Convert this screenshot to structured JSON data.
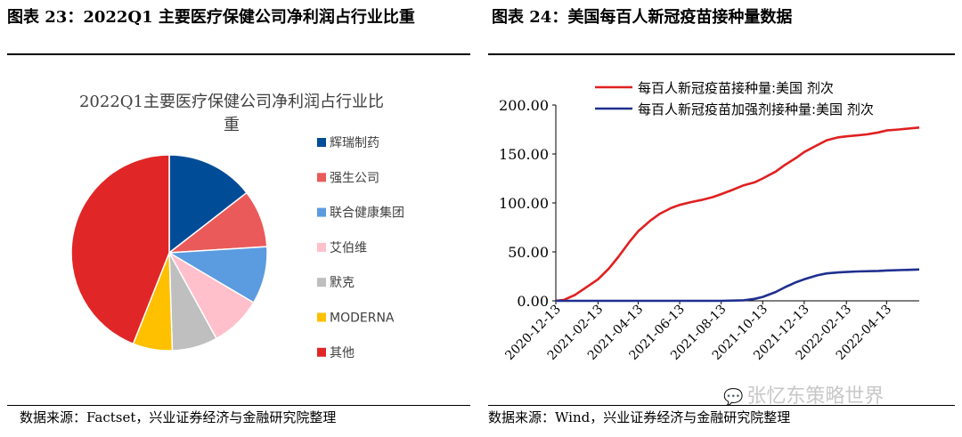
{
  "titles": {
    "left": "图表 23：2022Q1 主要医疗保健公司净利润占行业比重",
    "right": "图表 24：美国每百人新冠疫苗接种量数据"
  },
  "sources": {
    "left": "数据来源：Factset，兴业证券经济与金融研究院整理",
    "right": "数据来源：Wind，兴业证券经济与金融研究院整理"
  },
  "watermark": {
    "icon": "wechat-icon",
    "text": "张忆东策略世界"
  },
  "chart_data": [
    {
      "type": "pie",
      "title": "2022Q1主要医疗保健公司净利润占行业比重",
      "slices": [
        {
          "label": "辉瑞制药",
          "value": 14.5,
          "color": "#004C97"
        },
        {
          "label": "强生公司",
          "value": 9.5,
          "color": "#EB5A5A"
        },
        {
          "label": "联合健康集团",
          "value": 9.5,
          "color": "#5B9BE0"
        },
        {
          "label": "艾伯维",
          "value": 8.5,
          "color": "#FFC0CB"
        },
        {
          "label": "默克",
          "value": 7.5,
          "color": "#BFBFBF"
        },
        {
          "label": "MODERNA",
          "value": 6.5,
          "color": "#FFC000"
        },
        {
          "label": "其他",
          "value": 44.0,
          "color": "#E02626"
        }
      ],
      "legend": "right"
    },
    {
      "type": "line",
      "x_ticks": [
        "2020-12-13",
        "2021-02-13",
        "2021-04-13",
        "2021-06-13",
        "2021-08-13",
        "2021-10-13",
        "2021-12-13",
        "2022-02-13",
        "2022-04-13"
      ],
      "y_ticks": [
        "0.00",
        "50.00",
        "100.00",
        "150.00",
        "200.00"
      ],
      "ylim": [
        0,
        200
      ],
      "xlim": [
        "2020-12-13",
        "2022-05-31"
      ],
      "legend": "top",
      "series": [
        {
          "name": "每百人新冠疫苗接种量:美国 剂次",
          "color": "#E02020",
          "points": [
            [
              "2020-12-13",
              0
            ],
            [
              "2020-12-25",
              1
            ],
            [
              "2021-01-10",
              6
            ],
            [
              "2021-01-25",
              13
            ],
            [
              "2021-02-13",
              22
            ],
            [
              "2021-03-01",
              33
            ],
            [
              "2021-03-15",
              45
            ],
            [
              "2021-04-01",
              61
            ],
            [
              "2021-04-13",
              71
            ],
            [
              "2021-05-01",
              82
            ],
            [
              "2021-05-15",
              89
            ],
            [
              "2021-06-01",
              95
            ],
            [
              "2021-06-13",
              98
            ],
            [
              "2021-07-01",
              101
            ],
            [
              "2021-07-15",
              103
            ],
            [
              "2021-08-01",
              106
            ],
            [
              "2021-08-13",
              109
            ],
            [
              "2021-09-01",
              114
            ],
            [
              "2021-09-15",
              118
            ],
            [
              "2021-10-01",
              121
            ],
            [
              "2021-10-13",
              125
            ],
            [
              "2021-11-01",
              132
            ],
            [
              "2021-11-15",
              139
            ],
            [
              "2021-12-01",
              146
            ],
            [
              "2021-12-13",
              152
            ],
            [
              "2022-01-01",
              159
            ],
            [
              "2022-01-15",
              164
            ],
            [
              "2022-02-01",
              167
            ],
            [
              "2022-02-13",
              168
            ],
            [
              "2022-03-01",
              169
            ],
            [
              "2022-03-15",
              170
            ],
            [
              "2022-04-01",
              172
            ],
            [
              "2022-04-13",
              174
            ],
            [
              "2022-05-01",
              175
            ],
            [
              "2022-05-31",
              177
            ]
          ]
        },
        {
          "name": "每百人新冠疫苗加强剂接种量:美国 剂次",
          "color": "#1F2F8F",
          "points": [
            [
              "2020-12-13",
              0
            ],
            [
              "2021-08-13",
              0
            ],
            [
              "2021-09-15",
              0.5
            ],
            [
              "2021-10-01",
              2
            ],
            [
              "2021-10-13",
              4
            ],
            [
              "2021-11-01",
              9
            ],
            [
              "2021-11-15",
              14
            ],
            [
              "2021-12-01",
              19
            ],
            [
              "2021-12-13",
              22
            ],
            [
              "2022-01-01",
              26
            ],
            [
              "2022-01-15",
              28
            ],
            [
              "2022-02-01",
              29
            ],
            [
              "2022-02-13",
              29.5
            ],
            [
              "2022-03-01",
              30
            ],
            [
              "2022-04-01",
              30.5
            ],
            [
              "2022-04-13",
              31
            ],
            [
              "2022-05-31",
              32
            ]
          ]
        }
      ]
    }
  ]
}
